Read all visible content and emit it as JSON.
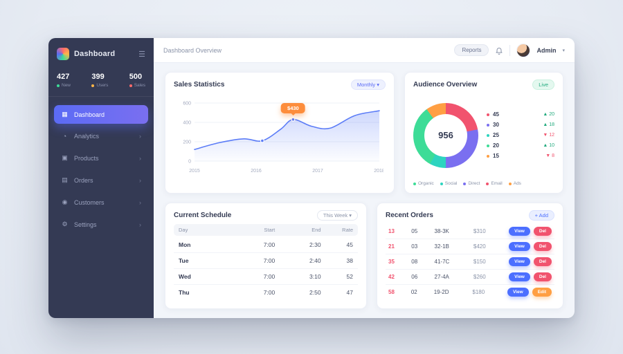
{
  "app": {
    "brand": "Dashboard"
  },
  "header": {
    "breadcrumb": "Dashboard Overview",
    "action_label": "Reports",
    "user_name": "Admin"
  },
  "sidebar": {
    "stats": [
      {
        "value": "427",
        "label": "New",
        "color": "#3ddc97"
      },
      {
        "value": "399",
        "label": "Users",
        "color": "#ffb648"
      },
      {
        "value": "500",
        "label": "Sales",
        "color": "#ff6b6b"
      }
    ],
    "items": [
      {
        "label": "Dashboard",
        "icon": "grid-icon",
        "active": true
      },
      {
        "label": "Analytics",
        "icon": "chart-icon",
        "active": false
      },
      {
        "label": "Products",
        "icon": "box-icon",
        "active": false
      },
      {
        "label": "Orders",
        "icon": "cart-icon",
        "active": false
      },
      {
        "label": "Customers",
        "icon": "users-icon",
        "active": false
      },
      {
        "label": "Settings",
        "icon": "gear-icon",
        "active": false
      }
    ]
  },
  "sales_card": {
    "title": "Sales Statistics",
    "filter_label": "Monthly ▾",
    "tooltip": "$430"
  },
  "audience_card": {
    "title": "Audience Overview",
    "badge": "Live",
    "total": "956",
    "legend": [
      {
        "color": "#f1536e",
        "value": "45",
        "delta": "+20"
      },
      {
        "color": "#7a6ff0",
        "value": "30",
        "delta": "+18"
      },
      {
        "color": "#2dd4bf",
        "value": "25",
        "delta": "-12"
      },
      {
        "color": "#3ddc97",
        "value": "20",
        "delta": "+10"
      },
      {
        "color": "#ff9f43",
        "value": "15",
        "delta": "-8"
      }
    ],
    "footer_legend": [
      {
        "color": "#3ddc97",
        "label": "Organic"
      },
      {
        "color": "#2dd4bf",
        "label": "Social"
      },
      {
        "color": "#7a6ff0",
        "label": "Direct"
      },
      {
        "color": "#f1536e",
        "label": "Email"
      },
      {
        "color": "#ff9f43",
        "label": "Ads"
      }
    ]
  },
  "schedule_card": {
    "title": "Current Schedule",
    "filter_label": "This Week ▾",
    "columns": [
      "Day",
      "Start",
      "End",
      "Rate"
    ],
    "rows": [
      [
        "Mon",
        "7:00",
        "2:30",
        "45"
      ],
      [
        "Tue",
        "7:00",
        "2:40",
        "38"
      ],
      [
        "Wed",
        "7:00",
        "3:10",
        "52"
      ],
      [
        "Thu",
        "7:00",
        "2:50",
        "47"
      ]
    ]
  },
  "orders_card": {
    "title": "Recent Orders",
    "action_label": "+ Add",
    "rows": [
      {
        "id": "13",
        "qty": "05",
        "code": "38-3K",
        "price": "$310",
        "a1": "View",
        "a2": "Del",
        "a2_style": "red"
      },
      {
        "id": "21",
        "qty": "03",
        "code": "32-1B",
        "price": "$420",
        "a1": "View",
        "a2": "Del",
        "a2_style": "red"
      },
      {
        "id": "35",
        "qty": "08",
        "code": "41-7C",
        "price": "$150",
        "a1": "View",
        "a2": "Del",
        "a2_style": "red"
      },
      {
        "id": "42",
        "qty": "06",
        "code": "27-4A",
        "price": "$260",
        "a1": "View",
        "a2": "Del",
        "a2_style": "red"
      },
      {
        "id": "58",
        "qty": "02",
        "code": "19-2D",
        "price": "$180",
        "a1": "View",
        "a2": "Edit",
        "a2_style": "orange"
      }
    ]
  },
  "chart_data": [
    {
      "type": "line",
      "title": "Sales Statistics",
      "x": [
        2015,
        2015.4,
        2015.8,
        2016.1,
        2016.4,
        2016.6,
        2016.9,
        2017.2,
        2017.6,
        2018
      ],
      "values": [
        120,
        190,
        230,
        210,
        330,
        430,
        360,
        340,
        470,
        520
      ],
      "ylim": [
        0,
        600
      ],
      "yticks": [
        0,
        200,
        400,
        600
      ],
      "xticks": [
        2015,
        2016,
        2017,
        2018
      ],
      "xlabel": "",
      "ylabel": "",
      "grid": true,
      "tooltip": {
        "x": 2016.6,
        "y": 430,
        "label": "$430"
      },
      "line_color": "#5b7cf7"
    },
    {
      "type": "pie",
      "title": "Audience Overview",
      "total": 956,
      "segments": [
        {
          "label": "Email",
          "value": 22,
          "color": "#f1536e"
        },
        {
          "label": "Direct",
          "value": 28,
          "color": "#7a6ff0"
        },
        {
          "label": "Social",
          "value": 8,
          "color": "#2dd4bf"
        },
        {
          "label": "Organic",
          "value": 32,
          "color": "#3ddc97"
        },
        {
          "label": "Ads",
          "value": 10,
          "color": "#ff9f43"
        }
      ]
    }
  ]
}
